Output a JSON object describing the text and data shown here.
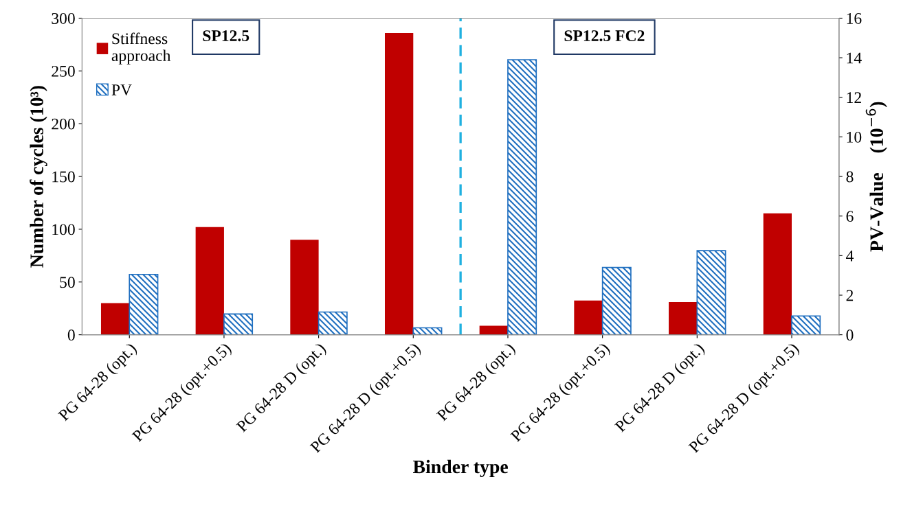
{
  "chart_data": {
    "type": "bar",
    "xlabel": "Binder type",
    "ylabel": "Number of cycles (10³)",
    "y2label": "PV-Value    (10$^{−6}$)",
    "categories": [
      "PG 64-28 (opt.)",
      "PG 64-28 (opt.+0.5)",
      "PG 64-28 D (opt.)",
      "PG 64-28 D (opt.+0.5)",
      "PG 64-28 (opt.)",
      "PG 64-28 (opt.+0.5)",
      "PG 64-28 D (opt.)",
      "PG 64-28 D (opt.+0.5)"
    ],
    "series": [
      {
        "name": "Stiffness\napproach",
        "color": "#c00000",
        "values": [
          30,
          102,
          90,
          286,
          8.5,
          32.5,
          31,
          115
        ]
      },
      {
        "name": "PV",
        "color": "#1f6fc0",
        "axis": "y2",
        "values": [
          3.05,
          1.05,
          1.15,
          0.35,
          13.9,
          3.4,
          4.25,
          0.95
        ]
      }
    ],
    "ylim": [
      0,
      300
    ],
    "yticks": [
      0,
      50,
      100,
      150,
      200,
      250,
      300
    ],
    "y2lim": [
      0,
      16
    ],
    "y2ticks": [
      0,
      2,
      4,
      6,
      8,
      10,
      12,
      14,
      16
    ],
    "annotations": [
      "SP12.5",
      "SP12.5 FC2"
    ],
    "legend": "top left",
    "grid": false
  }
}
